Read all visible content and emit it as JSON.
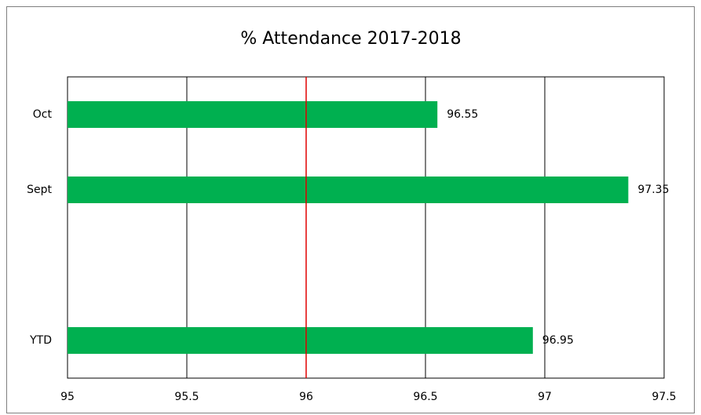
{
  "chart_data": {
    "type": "hbar",
    "title": "% Attendance 2017-2018",
    "categories": [
      "Oct",
      "Sept",
      null,
      "YTD"
    ],
    "values": [
      96.55,
      97.35,
      null,
      96.95
    ],
    "color": "#00b050",
    "xlim": [
      95,
      97.5
    ],
    "xticks": [
      95,
      95.5,
      96,
      96.5,
      97,
      97.5
    ],
    "grid": true,
    "reference_line": {
      "value": 96,
      "color": "#e00000"
    }
  }
}
